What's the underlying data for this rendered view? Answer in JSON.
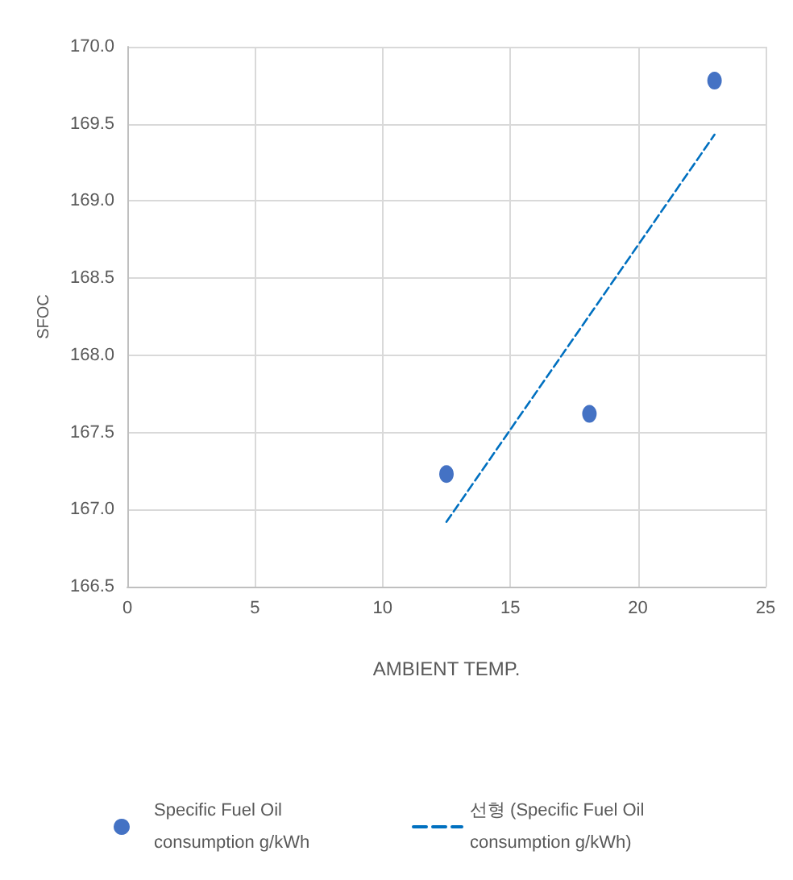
{
  "chart_data": {
    "type": "scatter",
    "xlabel": "AMBIENT TEMP.",
    "ylabel": "SFOC",
    "xlim": [
      0,
      25
    ],
    "xticks": [
      0,
      5,
      10,
      15,
      20,
      25
    ],
    "ylim": [
      166.5,
      170.0
    ],
    "yticks": [
      {
        "value": 166.5,
        "label": "166.5"
      },
      {
        "value": 167.0,
        "label": "167.0"
      },
      {
        "value": 167.5,
        "label": "167.5"
      },
      {
        "value": 168.0,
        "label": "168.0"
      },
      {
        "value": 168.5,
        "label": "168.5"
      },
      {
        "value": 169.0,
        "label": "169.0"
      },
      {
        "value": 169.5,
        "label": "169.5"
      },
      {
        "value": 170.0,
        "label": "170.0"
      }
    ],
    "grid": true,
    "legend": "bottom",
    "series": [
      {
        "name": "Specific Fuel Oil consumption g/kWh",
        "color": "#4472c4",
        "marker": "circle",
        "x": [
          12.5,
          18.1,
          23.0
        ],
        "values": [
          167.23,
          167.62,
          169.78
        ]
      },
      {
        "name": "선형 (Specific Fuel Oil consumption g/kWh)",
        "type": "line",
        "color": "#0070c0",
        "marker": "none",
        "line_style": "dashed",
        "x": [
          12.5,
          23.0
        ],
        "values": [
          166.92,
          169.43
        ]
      }
    ]
  }
}
